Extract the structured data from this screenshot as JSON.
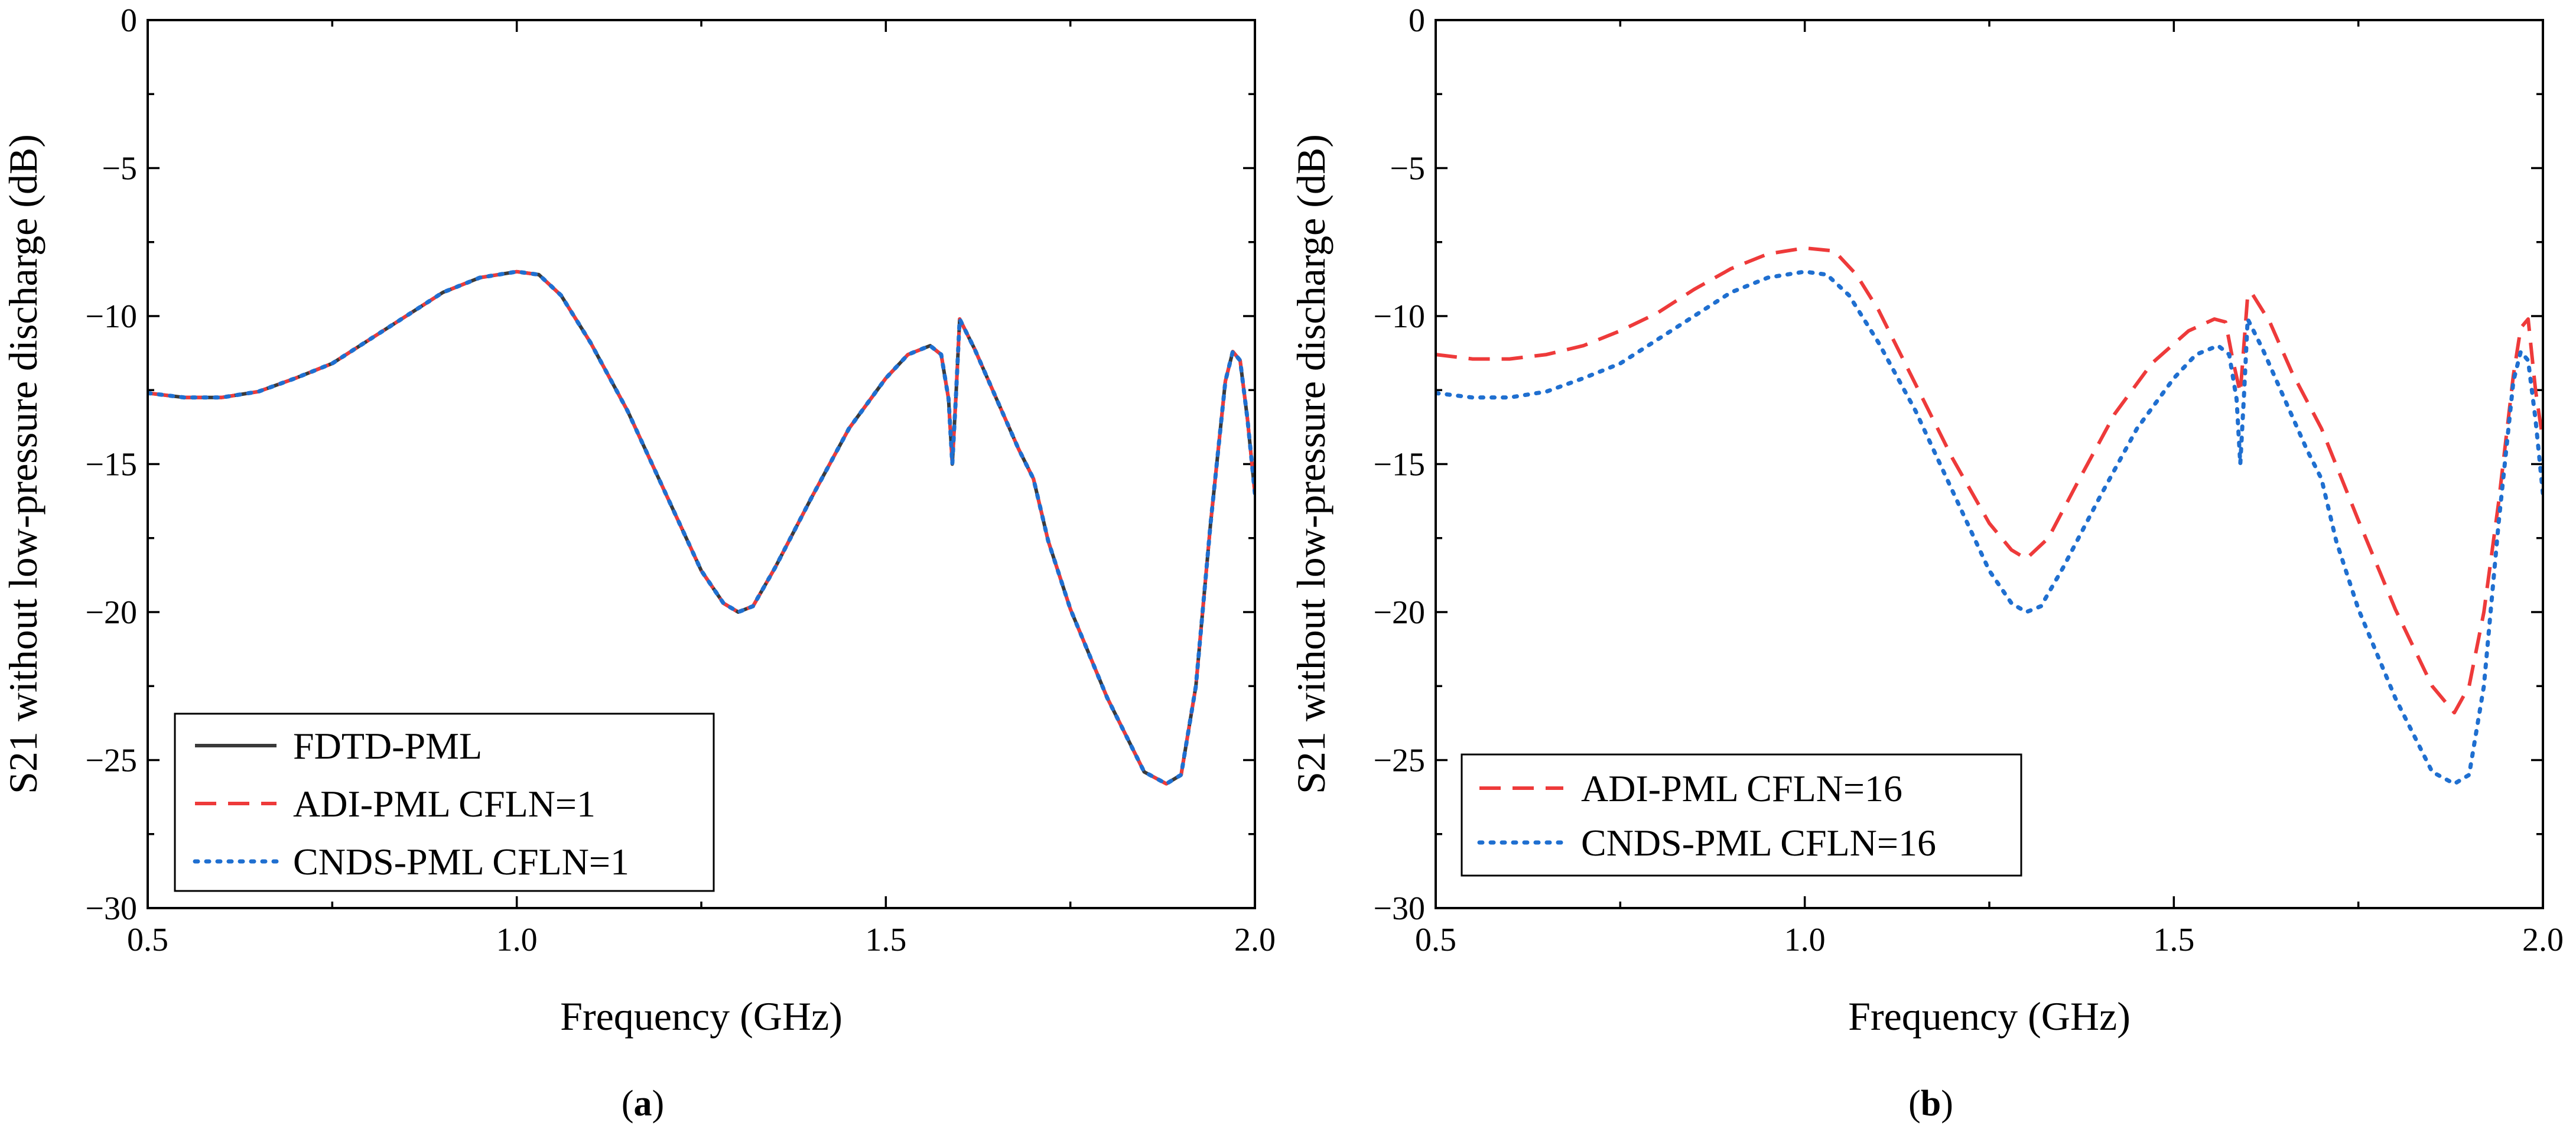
{
  "chart_data": [
    {
      "type": "line",
      "caption_prefix": "(",
      "caption_letter": "a",
      "caption_suffix": ")",
      "xlabel": "Frequency (GHz)",
      "ylabel": "S21 without low-pressure discharge (dB)",
      "xlim": [
        0.5,
        2.0
      ],
      "ylim": [
        -30,
        0
      ],
      "xticks": [
        0.5,
        1.0,
        1.5,
        2.0
      ],
      "xtick_labels": [
        "0.5",
        "1.0",
        "1.5",
        "2.0"
      ],
      "yticks": [
        0,
        -5,
        -10,
        -15,
        -20,
        -25,
        -30
      ],
      "ytick_labels": [
        "0",
        "−5",
        "−10",
        "−15",
        "−20",
        "−25",
        "−30"
      ],
      "legend_position": "bottom-left",
      "series": [
        {
          "name": "FDTD-PML",
          "color": "#3a3a3a",
          "style": "solid",
          "x": [
            0.5,
            0.55,
            0.6,
            0.65,
            0.7,
            0.75,
            0.8,
            0.85,
            0.9,
            0.95,
            1.0,
            1.03,
            1.06,
            1.1,
            1.15,
            1.2,
            1.25,
            1.28,
            1.3,
            1.32,
            1.35,
            1.4,
            1.45,
            1.5,
            1.53,
            1.56,
            1.575,
            1.585,
            1.59,
            1.595,
            1.6,
            1.62,
            1.65,
            1.68,
            1.7,
            1.72,
            1.75,
            1.8,
            1.85,
            1.88,
            1.9,
            1.92,
            1.94,
            1.96,
            1.97,
            1.98,
            1.99,
            2.0
          ],
          "y": [
            -12.6,
            -12.75,
            -12.75,
            -12.55,
            -12.1,
            -11.6,
            -10.8,
            -10.0,
            -9.2,
            -8.7,
            -8.5,
            -8.6,
            -9.3,
            -10.9,
            -13.2,
            -15.9,
            -18.6,
            -19.7,
            -20.0,
            -19.8,
            -18.5,
            -16.1,
            -13.8,
            -12.1,
            -11.3,
            -11.0,
            -11.3,
            -12.8,
            -15.0,
            -12.7,
            -10.1,
            -11.1,
            -12.8,
            -14.5,
            -15.5,
            -17.6,
            -19.9,
            -22.9,
            -25.4,
            -25.8,
            -25.5,
            -22.5,
            -17.0,
            -12.2,
            -11.2,
            -11.5,
            -13.5,
            -16.0
          ]
        },
        {
          "name": "ADI-PML CFLN=1",
          "color": "#ee3a3a",
          "style": "dashed",
          "x": [
            0.5,
            0.55,
            0.6,
            0.65,
            0.7,
            0.75,
            0.8,
            0.85,
            0.9,
            0.95,
            1.0,
            1.03,
            1.06,
            1.1,
            1.15,
            1.2,
            1.25,
            1.28,
            1.3,
            1.32,
            1.35,
            1.4,
            1.45,
            1.5,
            1.53,
            1.56,
            1.575,
            1.585,
            1.59,
            1.595,
            1.6,
            1.62,
            1.65,
            1.68,
            1.7,
            1.72,
            1.75,
            1.8,
            1.85,
            1.88,
            1.9,
            1.92,
            1.94,
            1.96,
            1.97,
            1.98,
            1.99,
            2.0
          ],
          "y": [
            -12.6,
            -12.75,
            -12.75,
            -12.55,
            -12.1,
            -11.6,
            -10.8,
            -10.0,
            -9.2,
            -8.7,
            -8.5,
            -8.6,
            -9.3,
            -10.9,
            -13.2,
            -15.9,
            -18.6,
            -19.7,
            -20.0,
            -19.8,
            -18.5,
            -16.1,
            -13.8,
            -12.1,
            -11.3,
            -11.0,
            -11.3,
            -12.8,
            -15.0,
            -12.7,
            -10.1,
            -11.1,
            -12.8,
            -14.5,
            -15.5,
            -17.6,
            -19.9,
            -22.9,
            -25.4,
            -25.8,
            -25.5,
            -22.5,
            -17.0,
            -12.2,
            -11.2,
            -11.5,
            -13.5,
            -16.0
          ]
        },
        {
          "name": "CNDS-PML CFLN=1",
          "color": "#1f6fd0",
          "style": "dotted",
          "x": [
            0.5,
            0.55,
            0.6,
            0.65,
            0.7,
            0.75,
            0.8,
            0.85,
            0.9,
            0.95,
            1.0,
            1.03,
            1.06,
            1.1,
            1.15,
            1.2,
            1.25,
            1.28,
            1.3,
            1.32,
            1.35,
            1.4,
            1.45,
            1.5,
            1.53,
            1.56,
            1.575,
            1.585,
            1.59,
            1.595,
            1.6,
            1.62,
            1.65,
            1.68,
            1.7,
            1.72,
            1.75,
            1.8,
            1.85,
            1.88,
            1.9,
            1.92,
            1.94,
            1.96,
            1.97,
            1.98,
            1.99,
            2.0
          ],
          "y": [
            -12.6,
            -12.75,
            -12.75,
            -12.55,
            -12.1,
            -11.6,
            -10.8,
            -10.0,
            -9.2,
            -8.7,
            -8.5,
            -8.6,
            -9.3,
            -10.9,
            -13.2,
            -15.9,
            -18.6,
            -19.7,
            -20.0,
            -19.8,
            -18.5,
            -16.1,
            -13.8,
            -12.1,
            -11.3,
            -11.0,
            -11.3,
            -12.8,
            -15.0,
            -12.7,
            -10.1,
            -11.1,
            -12.8,
            -14.5,
            -15.5,
            -17.6,
            -19.9,
            -22.9,
            -25.4,
            -25.8,
            -25.5,
            -22.5,
            -17.0,
            -12.2,
            -11.2,
            -11.5,
            -13.5,
            -16.0
          ]
        }
      ]
    },
    {
      "type": "line",
      "caption_prefix": "(",
      "caption_letter": "b",
      "caption_suffix": ")",
      "xlabel": "Frequency (GHz)",
      "ylabel": "S21 without low-pressure discharge (dB)",
      "xlim": [
        0.5,
        2.0
      ],
      "ylim": [
        -30,
        0
      ],
      "xticks": [
        0.5,
        1.0,
        1.5,
        2.0
      ],
      "xtick_labels": [
        "0.5",
        "1.0",
        "1.5",
        "2.0"
      ],
      "yticks": [
        0,
        -5,
        -10,
        -15,
        -20,
        -25,
        -30
      ],
      "ytick_labels": [
        "0",
        "−5",
        "−10",
        "−15",
        "−20",
        "−25",
        "−30"
      ],
      "legend_position": "bottom-left",
      "series": [
        {
          "name": "ADI-PML CFLN=16",
          "color": "#ee3a3a",
          "style": "dashed",
          "x": [
            0.5,
            0.55,
            0.6,
            0.65,
            0.7,
            0.75,
            0.8,
            0.85,
            0.9,
            0.95,
            1.0,
            1.04,
            1.07,
            1.1,
            1.15,
            1.2,
            1.25,
            1.28,
            1.3,
            1.33,
            1.37,
            1.42,
            1.47,
            1.52,
            1.555,
            1.57,
            1.58,
            1.59,
            1.6,
            1.605,
            1.615,
            1.63,
            1.66,
            1.7,
            1.75,
            1.8,
            1.85,
            1.88,
            1.9,
            1.92,
            1.94,
            1.96,
            1.97,
            1.98,
            1.99,
            2.0
          ],
          "y": [
            -11.3,
            -11.45,
            -11.45,
            -11.3,
            -11.0,
            -10.5,
            -9.9,
            -9.1,
            -8.4,
            -7.9,
            -7.7,
            -7.8,
            -8.6,
            -9.8,
            -12.3,
            -14.8,
            -17.0,
            -17.9,
            -18.2,
            -17.5,
            -15.6,
            -13.3,
            -11.6,
            -10.5,
            -10.1,
            -10.2,
            -11.5,
            -12.6,
            -9.3,
            -9.2,
            -9.6,
            -10.2,
            -11.9,
            -13.8,
            -16.9,
            -19.9,
            -22.5,
            -23.4,
            -22.5,
            -20.0,
            -16.3,
            -12.0,
            -10.4,
            -10.1,
            -12.5,
            -14.2
          ]
        },
        {
          "name": "CNDS-PML CFLN=16",
          "color": "#1f6fd0",
          "style": "dotted",
          "x": [
            0.5,
            0.55,
            0.6,
            0.65,
            0.7,
            0.75,
            0.8,
            0.85,
            0.9,
            0.95,
            1.0,
            1.03,
            1.06,
            1.1,
            1.15,
            1.2,
            1.25,
            1.28,
            1.3,
            1.32,
            1.35,
            1.4,
            1.45,
            1.5,
            1.53,
            1.56,
            1.575,
            1.585,
            1.59,
            1.595,
            1.6,
            1.62,
            1.65,
            1.68,
            1.7,
            1.72,
            1.75,
            1.8,
            1.85,
            1.88,
            1.9,
            1.92,
            1.94,
            1.96,
            1.97,
            1.98,
            1.99,
            2.0
          ],
          "y": [
            -12.6,
            -12.75,
            -12.75,
            -12.55,
            -12.1,
            -11.6,
            -10.8,
            -10.0,
            -9.2,
            -8.7,
            -8.5,
            -8.6,
            -9.3,
            -10.9,
            -13.2,
            -15.9,
            -18.6,
            -19.7,
            -20.0,
            -19.8,
            -18.5,
            -16.1,
            -13.8,
            -12.1,
            -11.3,
            -11.0,
            -11.3,
            -12.8,
            -15.0,
            -12.7,
            -10.1,
            -11.1,
            -12.8,
            -14.5,
            -15.5,
            -17.6,
            -19.9,
            -22.9,
            -25.4,
            -25.8,
            -25.5,
            -22.5,
            -17.0,
            -12.2,
            -11.2,
            -11.5,
            -13.5,
            -16.0
          ]
        }
      ]
    }
  ]
}
